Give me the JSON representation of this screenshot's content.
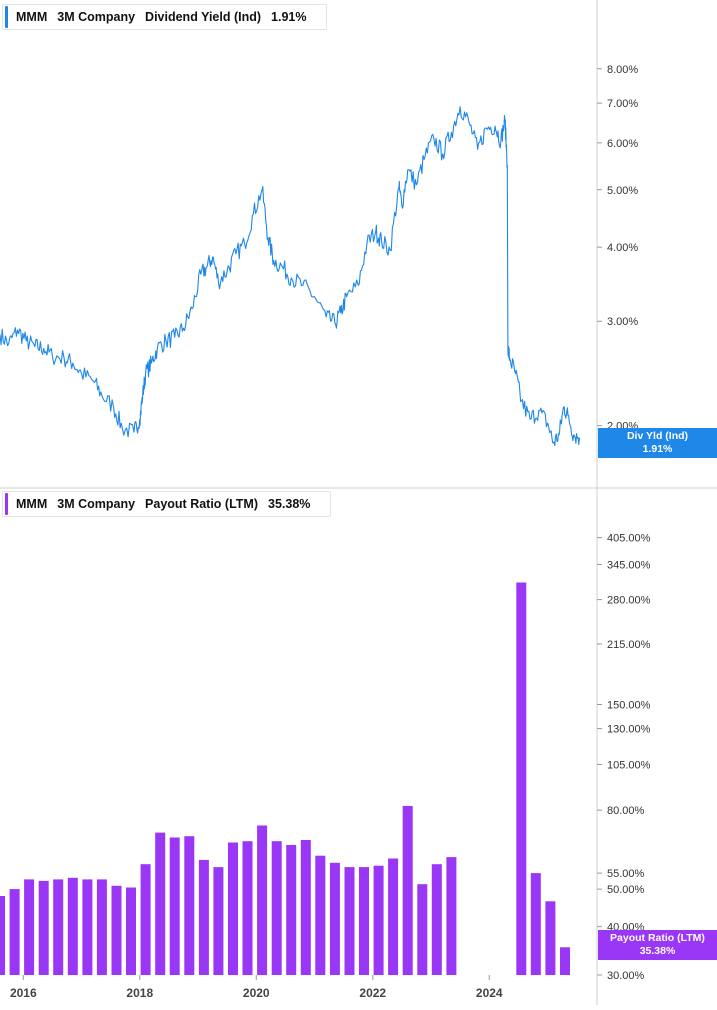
{
  "chart_data": [
    {
      "type": "line",
      "ticker": "MMM",
      "company": "3M Company",
      "series_name": "Dividend Yield (Ind)",
      "last_value": "1.91%",
      "badge_label": "Div Yld (Ind)",
      "badge_value": "1.91%",
      "color": "#1f87e8",
      "y_scale": "log",
      "yticks": [
        "8.00%",
        "7.00%",
        "6.00%",
        "5.00%",
        "4.00%",
        "3.00%",
        "2.00%"
      ],
      "ytick_values": [
        8,
        7,
        6,
        5,
        4,
        3,
        2
      ],
      "ylim": [
        1.75,
        9.3
      ],
      "xlim": [
        2015.6,
        2025.85
      ],
      "x": [
        2015.6,
        2015.75,
        2015.9,
        2016.05,
        2016.2,
        2016.35,
        2016.5,
        2016.7,
        2016.85,
        2017.0,
        2017.2,
        2017.35,
        2017.55,
        2017.7,
        2017.9,
        2018.0,
        2018.05,
        2018.1,
        2018.2,
        2018.3,
        2018.45,
        2018.6,
        2018.75,
        2018.9,
        2019.05,
        2019.15,
        2019.25,
        2019.35,
        2019.5,
        2019.65,
        2019.8,
        2019.95,
        2020.1,
        2020.2,
        2020.3,
        2020.45,
        2020.6,
        2020.8,
        2021.0,
        2021.2,
        2021.35,
        2021.45,
        2021.55,
        2021.75,
        2021.9,
        2022.05,
        2022.15,
        2022.3,
        2022.45,
        2022.5,
        2022.6,
        2022.75,
        2022.9,
        2023.05,
        2023.2,
        2023.35,
        2023.5,
        2023.65,
        2023.8,
        2023.95,
        2024.1,
        2024.2,
        2024.27,
        2024.31,
        2024.32,
        2024.35,
        2024.45,
        2024.55,
        2024.7,
        2024.85,
        2025.0,
        2025.1,
        2025.2,
        2025.28,
        2025.35,
        2025.45,
        2025.55
      ],
      "y": [
        2.85,
        2.75,
        2.9,
        2.78,
        2.72,
        2.7,
        2.62,
        2.6,
        2.55,
        2.45,
        2.38,
        2.25,
        2.15,
        1.98,
        1.95,
        2.05,
        2.25,
        2.45,
        2.55,
        2.7,
        2.78,
        2.82,
        2.92,
        3.15,
        3.6,
        3.7,
        3.85,
        3.5,
        3.65,
        3.9,
        4.05,
        4.55,
        5.0,
        4.15,
        3.8,
        3.7,
        3.55,
        3.45,
        3.3,
        3.05,
        2.98,
        3.1,
        3.3,
        3.45,
        4.05,
        4.25,
        4.1,
        3.95,
        5.05,
        4.7,
        5.4,
        5.1,
        5.7,
        6.1,
        5.75,
        6.25,
        6.9,
        6.5,
        5.85,
        6.35,
        6.4,
        6.05,
        6.55,
        5.5,
        2.7,
        2.6,
        2.45,
        2.2,
        2.05,
        2.12,
        2.02,
        1.87,
        1.93,
        2.15,
        2.08,
        1.93,
        1.91
      ]
    },
    {
      "type": "bar",
      "ticker": "MMM",
      "company": "3M Company",
      "series_name": "Payout Ratio (LTM)",
      "last_value": "35.38%",
      "badge_label": "Payout Ratio (LTM)",
      "badge_value": "35.38%",
      "color": "#9a36f5",
      "y_scale": "log",
      "yticks": [
        "405.00%",
        "345.00%",
        "280.00%",
        "215.00%",
        "150.00%",
        "130.00%",
        "105.00%",
        "80.00%",
        "55.00%",
        "50.00%",
        "40.00%",
        "30.00%"
      ],
      "ytick_values": [
        405,
        345,
        280,
        215,
        150,
        130,
        105,
        80,
        55,
        50,
        40,
        30
      ],
      "ylim": [
        30,
        455
      ],
      "xlim": [
        2015.6,
        2025.85
      ],
      "x_axis_labels": [
        "2016",
        "2018",
        "2020",
        "2022",
        "2024"
      ],
      "x_axis_values": [
        2016,
        2018,
        2020,
        2022,
        2024
      ],
      "x": [
        2015.6,
        2015.85,
        2016.1,
        2016.35,
        2016.6,
        2016.85,
        2017.1,
        2017.35,
        2017.6,
        2017.85,
        2018.1,
        2018.35,
        2018.6,
        2018.85,
        2019.1,
        2019.35,
        2019.6,
        2019.85,
        2020.1,
        2020.35,
        2020.6,
        2020.85,
        2021.1,
        2021.35,
        2021.6,
        2021.85,
        2022.1,
        2022.35,
        2022.6,
        2022.85,
        2023.1,
        2023.35,
        2024.55,
        2024.8,
        2025.05,
        2025.3
      ],
      "values": [
        48,
        50,
        53,
        52.5,
        53,
        53.5,
        53,
        53,
        51,
        50.5,
        58,
        70,
        68,
        68.5,
        59.5,
        57,
        66,
        66.5,
        73,
        66.5,
        65,
        67,
        61,
        58.5,
        57,
        57,
        57.5,
        60,
        82,
        51.5,
        58,
        60.5,
        310,
        55,
        46.5,
        35.38
      ]
    }
  ]
}
